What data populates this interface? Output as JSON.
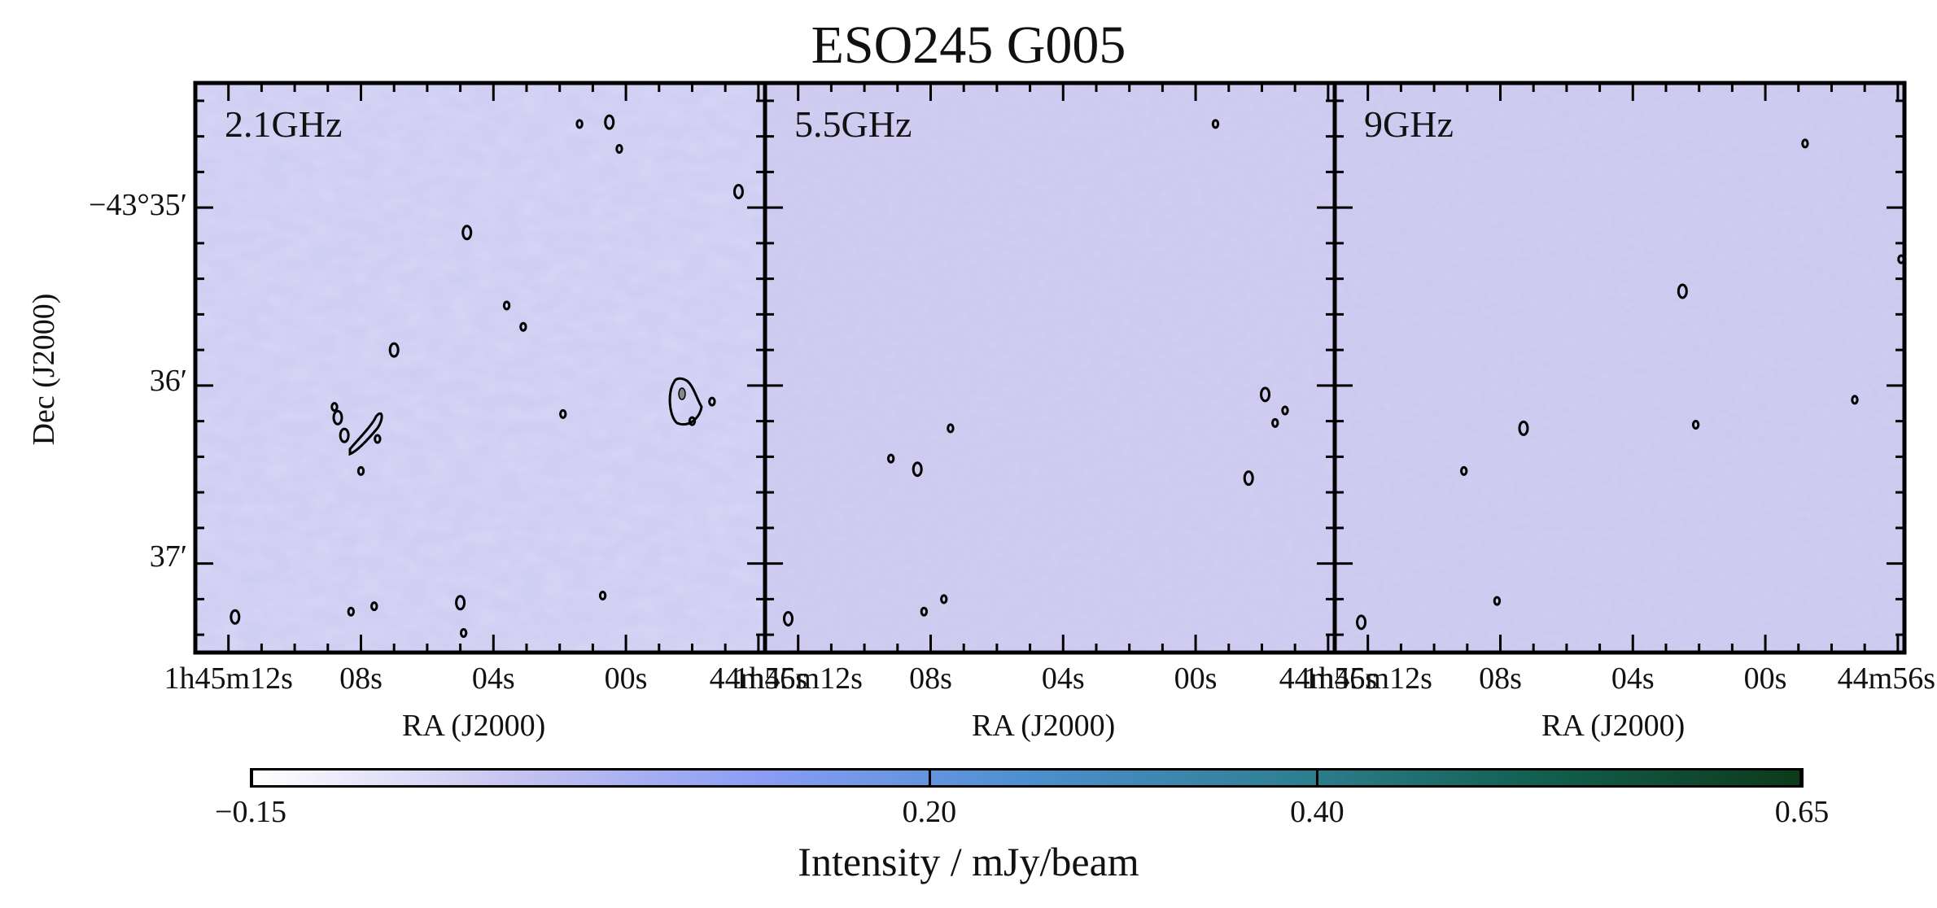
{
  "chart_data": {
    "type": "heatmap",
    "title": "ESO245 G005",
    "panels": [
      {
        "label": "2.1GHz",
        "xlabel": "RA (J2000)",
        "x_ticks": [
          "1h45m12s",
          "08s",
          "04s",
          "00s",
          "44m56s"
        ],
        "background": "#cccbf2",
        "contour_sources": [
          {
            "ra_s": 11.8,
            "dec_arcmin": 37.3
          },
          {
            "ra_s": 8.3,
            "dec_arcmin": 37.27
          },
          {
            "ra_s": 7.6,
            "dec_arcmin": 37.24
          },
          {
            "ra_s": 5.0,
            "dec_arcmin": 37.22
          },
          {
            "ra_s": 4.9,
            "dec_arcmin": 37.39
          },
          {
            "ra_s": 0.7,
            "dec_arcmin": 37.18
          },
          {
            "ra_s": 8.5,
            "dec_arcmin": 36.28
          },
          {
            "ra_s": 7.5,
            "dec_arcmin": 36.3
          },
          {
            "ra_s": 8.0,
            "dec_arcmin": 36.48
          },
          {
            "ra_s": 8.7,
            "dec_arcmin": 36.18
          },
          {
            "ra_s": 8.8,
            "dec_arcmin": 36.12
          },
          {
            "ra_s": 1.9,
            "dec_arcmin": 36.16
          },
          {
            "ra_s": 7.0,
            "dec_arcmin": 35.8
          },
          {
            "ra_s": 3.6,
            "dec_arcmin": 35.55
          },
          {
            "ra_s": 3.1,
            "dec_arcmin": 35.67
          },
          {
            "ra_s": 4.8,
            "dec_arcmin": 35.14
          },
          {
            "ra_s": 58.0,
            "dec_arcmin": 36.2
          },
          {
            "ra_s": 57.4,
            "dec_arcmin": 36.09
          },
          {
            "ra_s": 56.6,
            "dec_arcmin": 34.91
          },
          {
            "ra_s": 0.2,
            "dec_arcmin": 34.67
          },
          {
            "ra_s": 1.4,
            "dec_arcmin": 34.53
          },
          {
            "ra_s": 0.5,
            "dec_arcmin": 34.52
          }
        ]
      },
      {
        "label": "5.5GHz",
        "xlabel": "RA (J2000)",
        "x_ticks": [
          "1h45m12s",
          "08s",
          "04s",
          "00s",
          "44m56s"
        ],
        "background": "#ccc8ef",
        "contour_sources": [
          {
            "ra_s": 12.3,
            "dec_arcmin": 37.31
          },
          {
            "ra_s": 8.2,
            "dec_arcmin": 37.27
          },
          {
            "ra_s": 7.6,
            "dec_arcmin": 37.2
          },
          {
            "ra_s": 8.4,
            "dec_arcmin": 36.47
          },
          {
            "ra_s": 9.2,
            "dec_arcmin": 36.41
          },
          {
            "ra_s": 7.4,
            "dec_arcmin": 36.24
          },
          {
            "ra_s": 57.9,
            "dec_arcmin": 36.05
          },
          {
            "ra_s": 57.3,
            "dec_arcmin": 36.14
          },
          {
            "ra_s": 57.6,
            "dec_arcmin": 36.21
          },
          {
            "ra_s": 58.4,
            "dec_arcmin": 36.52
          },
          {
            "ra_s": 59.4,
            "dec_arcmin": 34.53
          }
        ]
      },
      {
        "label": "9GHz",
        "xlabel": "RA (J2000)",
        "x_ticks": [
          "1h45m12s",
          "08s",
          "04s",
          "00s",
          "44m56s"
        ],
        "background": "#cbc8ef",
        "contour_sources": [
          {
            "ra_s": 12.2,
            "dec_arcmin": 37.33
          },
          {
            "ra_s": 8.1,
            "dec_arcmin": 37.21
          },
          {
            "ra_s": 9.1,
            "dec_arcmin": 36.48
          },
          {
            "ra_s": 7.3,
            "dec_arcmin": 36.24
          },
          {
            "ra_s": 2.1,
            "dec_arcmin": 36.22
          },
          {
            "ra_s": 57.3,
            "dec_arcmin": 36.08
          },
          {
            "ra_s": 2.5,
            "dec_arcmin": 35.47
          },
          {
            "ra_s": 58.8,
            "dec_arcmin": 34.64
          },
          {
            "ra_s": 55.9,
            "dec_arcmin": 35.29
          }
        ]
      }
    ],
    "ylabel": "Dec (J2000)",
    "y_ticks": [
      "−43°35′",
      "36′",
      "37′"
    ],
    "ra_range_s": [
      13.0,
      55.8
    ],
    "dec_range_arcmin": [
      34.3,
      37.5
    ],
    "colorbar": {
      "label": "Intensity / mJy/beam",
      "min": -0.15,
      "max": 0.65,
      "ticks": [
        -0.15,
        0.2,
        0.4,
        0.65
      ],
      "tick_labels": [
        "−0.15",
        "0.20",
        "0.40",
        "0.65"
      ],
      "colors": [
        "#ffffff",
        "#c5c3f0",
        "#8a9cf5",
        "#4d8fd0",
        "#2f8094",
        "#126050",
        "#0d3a1a"
      ]
    }
  }
}
